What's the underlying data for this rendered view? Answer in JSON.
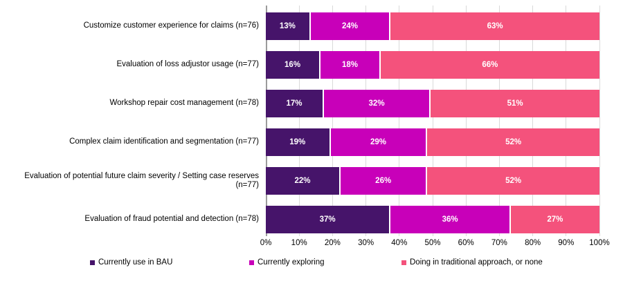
{
  "chart_data": {
    "type": "bar",
    "variant": "horizontal-stacked",
    "title": "",
    "categories": [
      "Customize customer experience for claims (n=76)",
      "Evaluation of loss adjustor usage (n=77)",
      "Workshop repair cost management (n=78)",
      "Complex claim identification and segmentation (n=77)",
      "Evaluation of potential future claim severity / Setting case reserves (n=77)",
      "Evaluation of fraud potential and detection (n=78)"
    ],
    "series": [
      {
        "name": "Currently use in BAU",
        "color": "#46146a",
        "values": [
          13,
          16,
          17,
          19,
          22,
          37
        ]
      },
      {
        "name": "Currently exploring",
        "color": "#c800b9",
        "values": [
          24,
          18,
          32,
          29,
          26,
          36
        ]
      },
      {
        "name": "Doing in traditional approach, or none",
        "color": "#f4527c",
        "values": [
          63,
          66,
          51,
          52,
          52,
          27
        ]
      }
    ],
    "value_suffix": "%",
    "xlim": [
      0,
      100
    ],
    "x_ticks": [
      "0%",
      "10%",
      "20%",
      "30%",
      "40%",
      "50%",
      "60%",
      "70%",
      "80%",
      "90%",
      "100%"
    ],
    "grid": true,
    "legend_position": "bottom"
  },
  "style": {
    "gridline_color": "#d9d9d9",
    "axis_line_color": "#9b9b9b",
    "bar_label_color": "#ffffff",
    "text_color": "#000000"
  }
}
